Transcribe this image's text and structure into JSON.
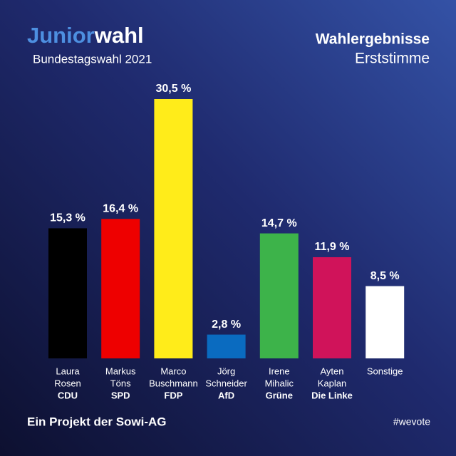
{
  "header": {
    "logo_part1": "Junior",
    "logo_part2": "wahl",
    "logo_subtitle": "Bundestagswahl 2021"
  },
  "chart_data": {
    "type": "bar",
    "title": "Wahlergebnisse",
    "subtitle": "Erststimme",
    "categories": [
      [
        "Laura",
        "Rosen",
        "CDU"
      ],
      [
        "Markus",
        "Töns",
        "SPD"
      ],
      [
        "Marco",
        "Buschmann",
        "FDP"
      ],
      [
        "Jörg",
        "Schneider",
        "AfD"
      ],
      [
        "Irene",
        "Mihalic",
        "Grüne"
      ],
      [
        "Ayten",
        "Kaplan",
        "Die Linke"
      ],
      [
        "Sonstige"
      ]
    ],
    "values": [
      15.3,
      16.4,
      30.5,
      2.8,
      14.7,
      11.9,
      8.5
    ],
    "value_labels": [
      "15,3 %",
      "16,4 %",
      "30,5 %",
      "2,8 %",
      "14,7 %",
      "11,9 %",
      "8,5 %"
    ],
    "colors": [
      "#000000",
      "#ee0000",
      "#ffec1a",
      "#0a6bc0",
      "#3db34a",
      "#d0135a",
      "#ffffff"
    ]
  },
  "footer": {
    "project": "Ein Projekt der Sowi-AG",
    "hashtag": "#wevote"
  }
}
